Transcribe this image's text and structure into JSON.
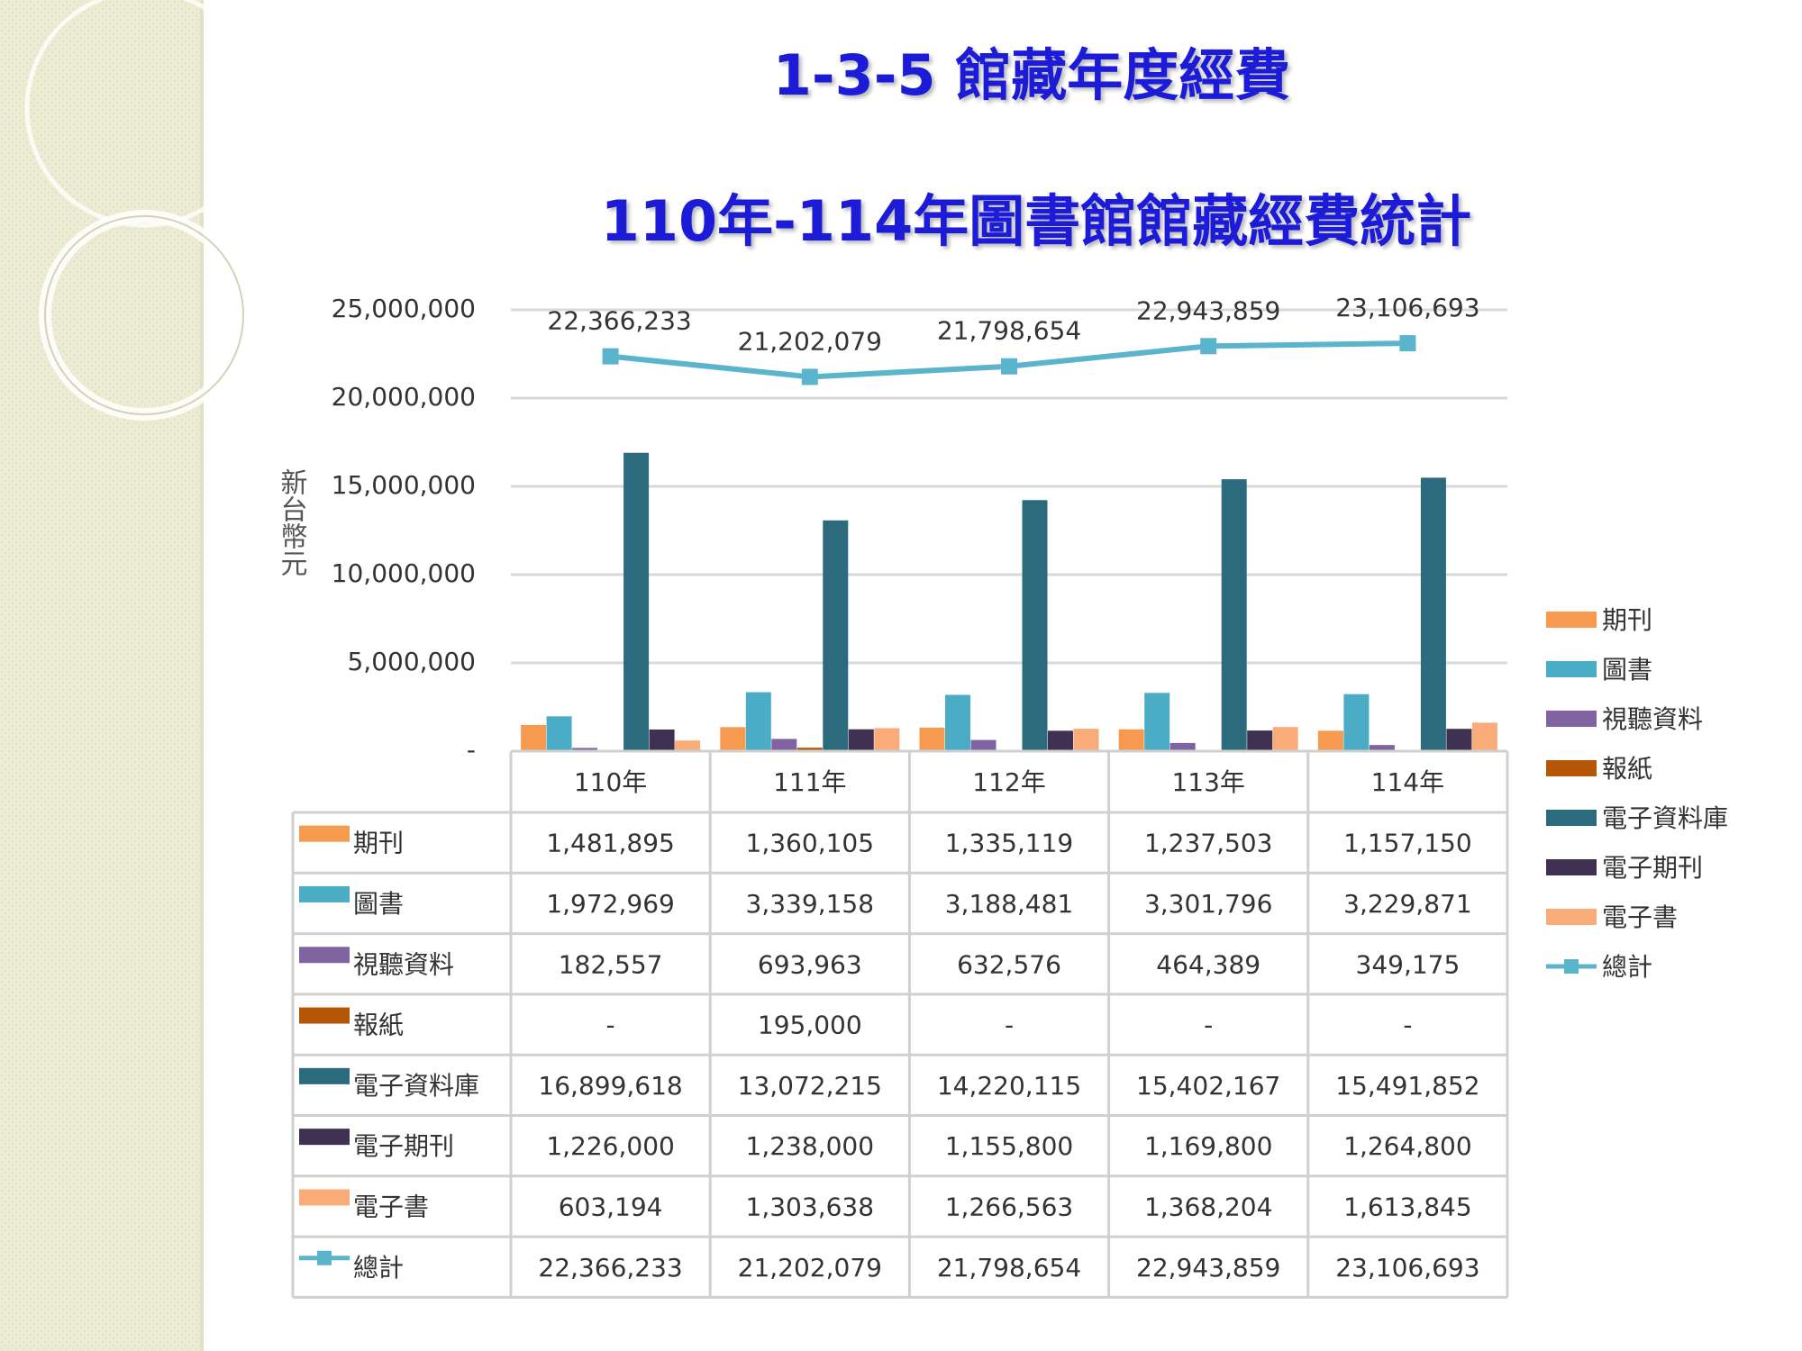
{
  "chart_data": {
    "type": "bar",
    "title": "1-3-5 館藏年度經費",
    "subtitle": "110年-114年圖書館館藏經費統計",
    "y_label": "新台幣元",
    "categories": [
      "110年",
      "111年",
      "112年",
      "113年",
      "114年"
    ],
    "ylim": [
      0,
      25000000
    ],
    "yticks": [
      {
        "value": 0,
        "label": "-"
      },
      {
        "value": 5000000,
        "label": "5,000,000"
      },
      {
        "value": 10000000,
        "label": "10,000,000"
      },
      {
        "value": 15000000,
        "label": "15,000,000"
      },
      {
        "value": 20000000,
        "label": "20,000,000"
      },
      {
        "value": 25000000,
        "label": "25,000,000"
      }
    ],
    "grid": true,
    "legend": "right",
    "series": [
      {
        "name": "期刊",
        "color": "#f59a4f",
        "values": [
          1481895,
          1360105,
          1335119,
          1237503,
          1157150
        ],
        "value_labels": [
          "1,481,895",
          "1,360,105",
          "1,335,119",
          "1,237,503",
          "1,157,150"
        ]
      },
      {
        "name": "圖書",
        "color": "#4bacc6",
        "values": [
          1972969,
          3339158,
          3188481,
          3301796,
          3229871
        ],
        "value_labels": [
          "1,972,969",
          "3,339,158",
          "3,188,481",
          "3,301,796",
          "3,229,871"
        ]
      },
      {
        "name": "視聽資料",
        "color": "#8064a2",
        "values": [
          182557,
          693963,
          632576,
          464389,
          349175
        ],
        "value_labels": [
          "182,557",
          "693,963",
          "632,576",
          "464,389",
          "349,175"
        ]
      },
      {
        "name": "報紙",
        "color": "#b65708",
        "values": [
          0,
          195000,
          0,
          0,
          0
        ],
        "value_labels": [
          "-",
          "195,000",
          "-",
          "-",
          "-"
        ]
      },
      {
        "name": "電子資料庫",
        "color": "#2c6a7e",
        "values": [
          16899618,
          13072215,
          14220115,
          15402167,
          15491852
        ],
        "value_labels": [
          "16,899,618",
          "13,072,215",
          "14,220,115",
          "15,402,167",
          "15,491,852"
        ]
      },
      {
        "name": "電子期刊",
        "color": "#403152",
        "values": [
          1226000,
          1238000,
          1155800,
          1169800,
          1264800
        ],
        "value_labels": [
          "1,226,000",
          "1,238,000",
          "1,155,800",
          "1,169,800",
          "1,264,800"
        ]
      },
      {
        "name": "電子書",
        "color": "#f9ac78",
        "values": [
          603194,
          1303638,
          1266563,
          1368204,
          1613845
        ],
        "value_labels": [
          "603,194",
          "1,303,638",
          "1,266,563",
          "1,368,204",
          "1,613,845"
        ]
      },
      {
        "name": "總計",
        "color": "#5ab4cc",
        "type": "line",
        "values": [
          22366233,
          21202079,
          21798654,
          22943859,
          23106693
        ],
        "value_labels": [
          "22,366,233",
          "21,202,079",
          "21,798,654",
          "22,943,859",
          "23,106,693"
        ]
      }
    ]
  }
}
